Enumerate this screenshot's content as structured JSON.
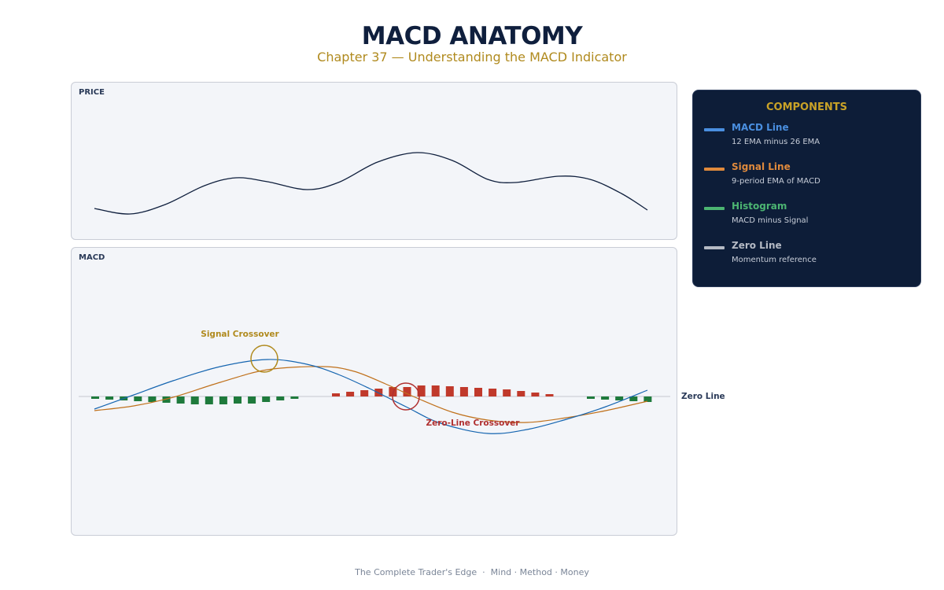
{
  "header": {
    "title": "MACD ANATOMY",
    "subtitle": "Chapter 37 — Understanding the MACD Indicator"
  },
  "price_panel": {
    "label": "PRICE"
  },
  "macd_panel": {
    "label": "MACD",
    "zero_line_label": "Zero Line",
    "signal_crossover_label": "Signal Crossover",
    "zero_line_crossover_label": "Zero-Line Crossover"
  },
  "legend": {
    "title": "COMPONENTS",
    "items": [
      {
        "name": "MACD Line",
        "desc": "12 EMA minus 26 EMA",
        "color": "#4a8fe0"
      },
      {
        "name": "Signal Line",
        "desc": "9-period EMA of MACD",
        "color": "#e08a3c"
      },
      {
        "name": "Histogram",
        "desc": "MACD minus Signal",
        "color": "#4cb572"
      },
      {
        "name": "Zero Line",
        "desc": "Momentum reference",
        "color": "#b5bac4"
      }
    ]
  },
  "colors": {
    "price_line": "#0f1f3d",
    "macd_line": "#1565b0",
    "signal_line": "#c0711c",
    "hist_positive": "#c0392b",
    "hist_negative": "#1e7a3c",
    "zero_line": "#c4c8d0",
    "signal_crossover_marker": "#b08a1e",
    "zero_crossover_marker": "#b03030"
  },
  "footer": {
    "book": "The Complete Trader's Edge",
    "tagline": "Mind · Method · Money"
  }
}
